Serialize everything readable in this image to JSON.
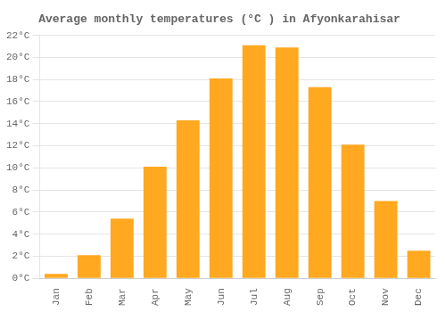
{
  "chart_data": {
    "type": "bar",
    "title": "Average monthly temperatures (°C ) in Afyonkarahisar",
    "categories": [
      "Jan",
      "Feb",
      "Mar",
      "Apr",
      "May",
      "Jun",
      "Jul",
      "Aug",
      "Sep",
      "Oct",
      "Nov",
      "Dec"
    ],
    "values": [
      0.4,
      2.1,
      5.4,
      10.1,
      14.3,
      18.1,
      21.1,
      20.9,
      17.3,
      12.1,
      7.0,
      2.5
    ],
    "color": "#FFA820",
    "ylim": [
      0,
      22
    ],
    "yticks": [
      {
        "value": 0,
        "label": "0°C"
      },
      {
        "value": 2,
        "label": "2°C"
      },
      {
        "value": 4,
        "label": "4°C"
      },
      {
        "value": 6,
        "label": "6°C"
      },
      {
        "value": 8,
        "label": "8°C"
      },
      {
        "value": 10,
        "label": "10°C"
      },
      {
        "value": 12,
        "label": "12°C"
      },
      {
        "value": 14,
        "label": "14°C"
      },
      {
        "value": 16,
        "label": "16°C"
      },
      {
        "value": 18,
        "label": "18°C"
      },
      {
        "value": 20,
        "label": "20°C"
      },
      {
        "value": 22,
        "label": "22°C"
      }
    ],
    "grid": true
  }
}
